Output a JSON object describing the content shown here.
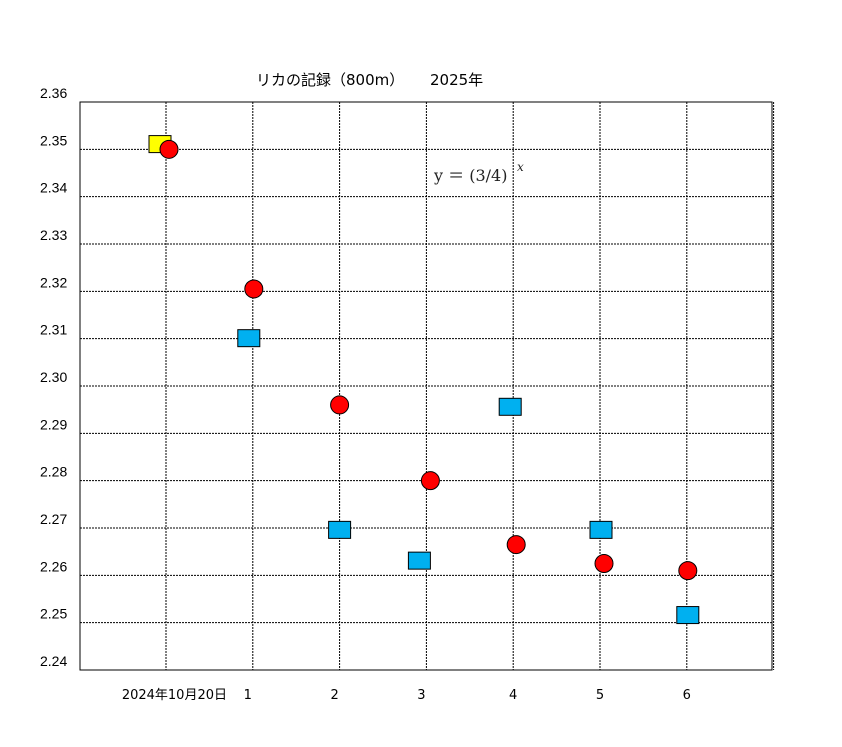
{
  "chart_data": {
    "type": "scatter",
    "title_left": "リカの記録（800m）",
    "title_right": "2025年",
    "formula": {
      "base": "y ＝ (3/4)",
      "exponent": "x"
    },
    "categories": [
      "2024年10月20日",
      "1",
      "2",
      "3",
      "4",
      "5",
      "6"
    ],
    "y_ticks": [
      "2.36",
      "2.35",
      "2.34",
      "2.33",
      "2.32",
      "2.31",
      "2.30",
      "2.29",
      "2.28",
      "2.27",
      "2.26",
      "2.25",
      "2.24"
    ],
    "ylim": [
      2.24,
      2.36
    ],
    "grid": true,
    "series": [
      {
        "marker": "square",
        "color": "#00b0f0",
        "first_color": "#ffff00",
        "values": [
          2.351,
          2.31,
          2.2695,
          2.263,
          2.2955,
          2.2695,
          2.2515
        ]
      },
      {
        "marker": "circle",
        "color": "#ff0000",
        "values": [
          2.35,
          2.3205,
          2.296,
          2.28,
          2.2665,
          2.2625,
          2.261
        ]
      }
    ]
  }
}
